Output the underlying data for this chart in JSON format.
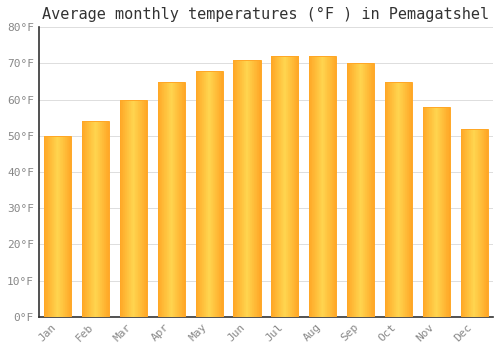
{
  "title": "Average monthly temperatures (°F ) in Pemagatshel",
  "months": [
    "Jan",
    "Feb",
    "Mar",
    "Apr",
    "May",
    "Jun",
    "Jul",
    "Aug",
    "Sep",
    "Oct",
    "Nov",
    "Dec"
  ],
  "values": [
    50,
    54,
    60,
    65,
    68,
    71,
    72,
    72,
    70,
    65,
    58,
    52
  ],
  "bar_color_center": "#FFD54F",
  "bar_color_edge": "#FFA726",
  "background_color": "#FFFFFF",
  "plot_bg_color": "#FFFFFF",
  "grid_color": "#DDDDDD",
  "ylim": [
    0,
    80
  ],
  "yticks": [
    0,
    10,
    20,
    30,
    40,
    50,
    60,
    70,
    80
  ],
  "ytick_labels": [
    "0°F",
    "10°F",
    "20°F",
    "30°F",
    "40°F",
    "50°F",
    "60°F",
    "70°F",
    "80°F"
  ],
  "title_fontsize": 11,
  "tick_fontsize": 8,
  "font_family": "monospace",
  "spine_color": "#333333",
  "tick_color": "#888888"
}
